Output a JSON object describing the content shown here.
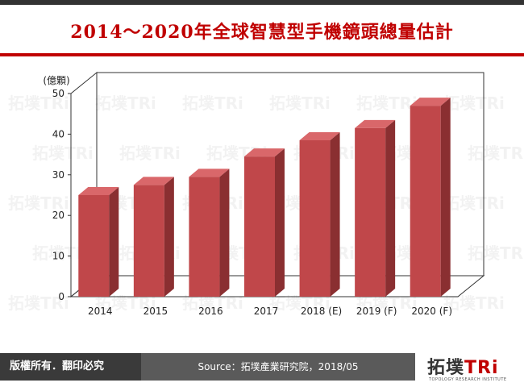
{
  "title": "2014～2020年全球智慧型手機鏡頭總量估計",
  "footer": {
    "rights": "版權所有．翻印必究",
    "source": "Source：拓墣產業研究院，2018/05",
    "logo_text_a": "拓墣",
    "logo_text_b": "TRi",
    "logo_sub": "TOPOLOGY RESEARCH INSTITUTE"
  },
  "colors": {
    "bar_front": "#c0474a",
    "bar_side": "#8a2f31",
    "bar_top": "#d9676a",
    "title": "#c00000"
  },
  "chart_data": {
    "type": "bar",
    "unit_label": "(億顆)",
    "categories": [
      "2014",
      "2015",
      "2016",
      "2017",
      "2018 (E)",
      "2019 (F)",
      "2020 (F)"
    ],
    "values": [
      25,
      27.5,
      29.5,
      34.5,
      38.5,
      41.5,
      47
    ],
    "ylim": [
      0,
      50
    ],
    "yticks": [
      0,
      10,
      20,
      30,
      40,
      50
    ],
    "grid": false
  }
}
